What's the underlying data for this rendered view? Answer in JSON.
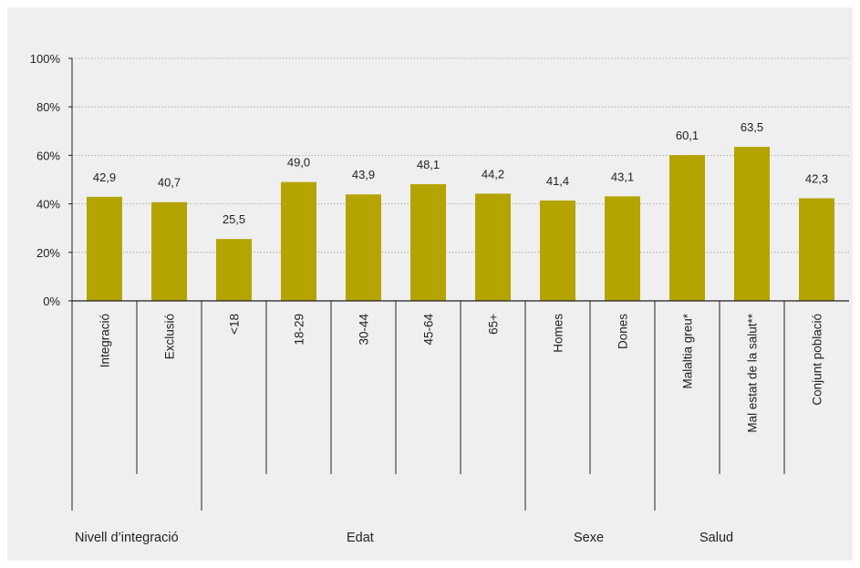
{
  "chart_data": {
    "type": "bar",
    "categories": [
      "Integració",
      "Exclusió",
      "<18",
      "18-29",
      "30-44",
      "45-64",
      "65+",
      "Homes",
      "Dones",
      "Malaltia greu*",
      "Mal estat de la salut**",
      "Conjunt població"
    ],
    "values": [
      42.9,
      40.7,
      25.5,
      49.0,
      43.9,
      48.1,
      44.2,
      41.4,
      43.1,
      60.1,
      63.5,
      42.3
    ],
    "value_labels": [
      "42,9",
      "40,7",
      "25,5",
      "49,0",
      "43,9",
      "48,1",
      "44,2",
      "41,4",
      "43,1",
      "60,1",
      "63,5",
      "42,3"
    ],
    "yticks": [
      "0%",
      "20%",
      "40%",
      "60%",
      "80%",
      "100%"
    ],
    "ylim": [
      0,
      100
    ],
    "groups": [
      {
        "label": "Nivell d’integració",
        "start": 0,
        "end": 1
      },
      {
        "label": "Edat",
        "start": 2,
        "end": 6
      },
      {
        "label": "Sexe",
        "start": 7,
        "end": 8
      },
      {
        "label": "Salud",
        "start": 9,
        "end": 10
      }
    ],
    "bar_color": "#b5a300",
    "grid": true,
    "legend": "none"
  }
}
